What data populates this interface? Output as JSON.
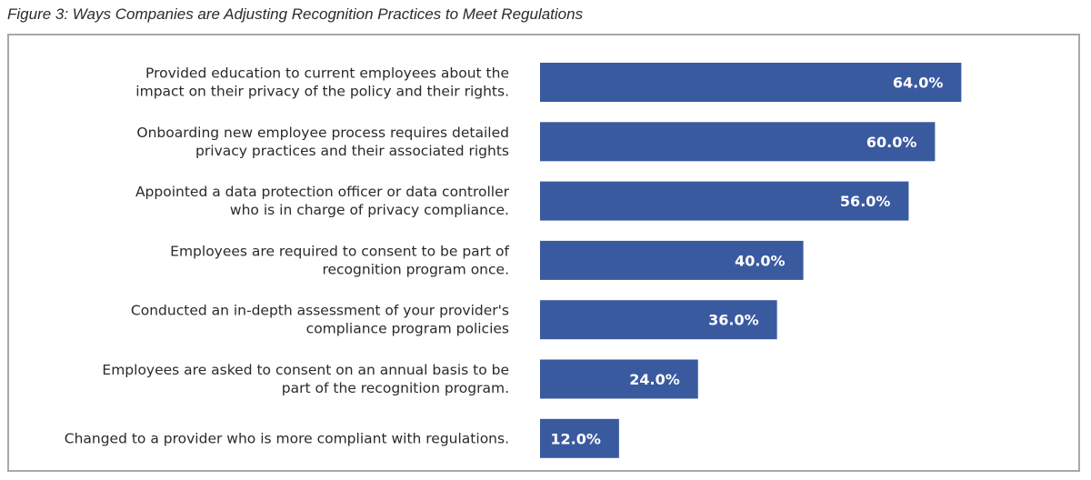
{
  "figure": {
    "caption": "Figure 3: Ways Companies are Adjusting Recognition Practices to Meet Regulations"
  },
  "chart_data": {
    "type": "bar",
    "orientation": "horizontal",
    "title": "",
    "xlabel": "",
    "ylabel": "",
    "xlim": [
      0,
      70
    ],
    "grid": false,
    "legend": "none",
    "bar_color": "#3a5aa0",
    "categories": [
      [
        "Provided education to current employees about the",
        "impact on their privacy of the policy and their rights."
      ],
      [
        "Onboarding new employee process requires detailed",
        "privacy practices and their associated rights"
      ],
      [
        "Appointed a data protection officer or data controller",
        "who is in charge of privacy compliance."
      ],
      [
        "Employees are required to consent to be part of",
        "recognition program once."
      ],
      [
        "Conducted an in-depth assessment of your provider's",
        "compliance program policies"
      ],
      [
        "Employees are asked to consent on an annual basis to be",
        "part of the recognition program."
      ],
      [
        "Changed to a provider who is more compliant with regulations."
      ]
    ],
    "values": [
      64.0,
      60.0,
      56.0,
      40.0,
      36.0,
      24.0,
      12.0
    ],
    "value_labels": [
      "64.0%",
      "60.0%",
      "56.0%",
      "40.0%",
      "36.0%",
      "24.0%",
      "12.0%"
    ]
  }
}
